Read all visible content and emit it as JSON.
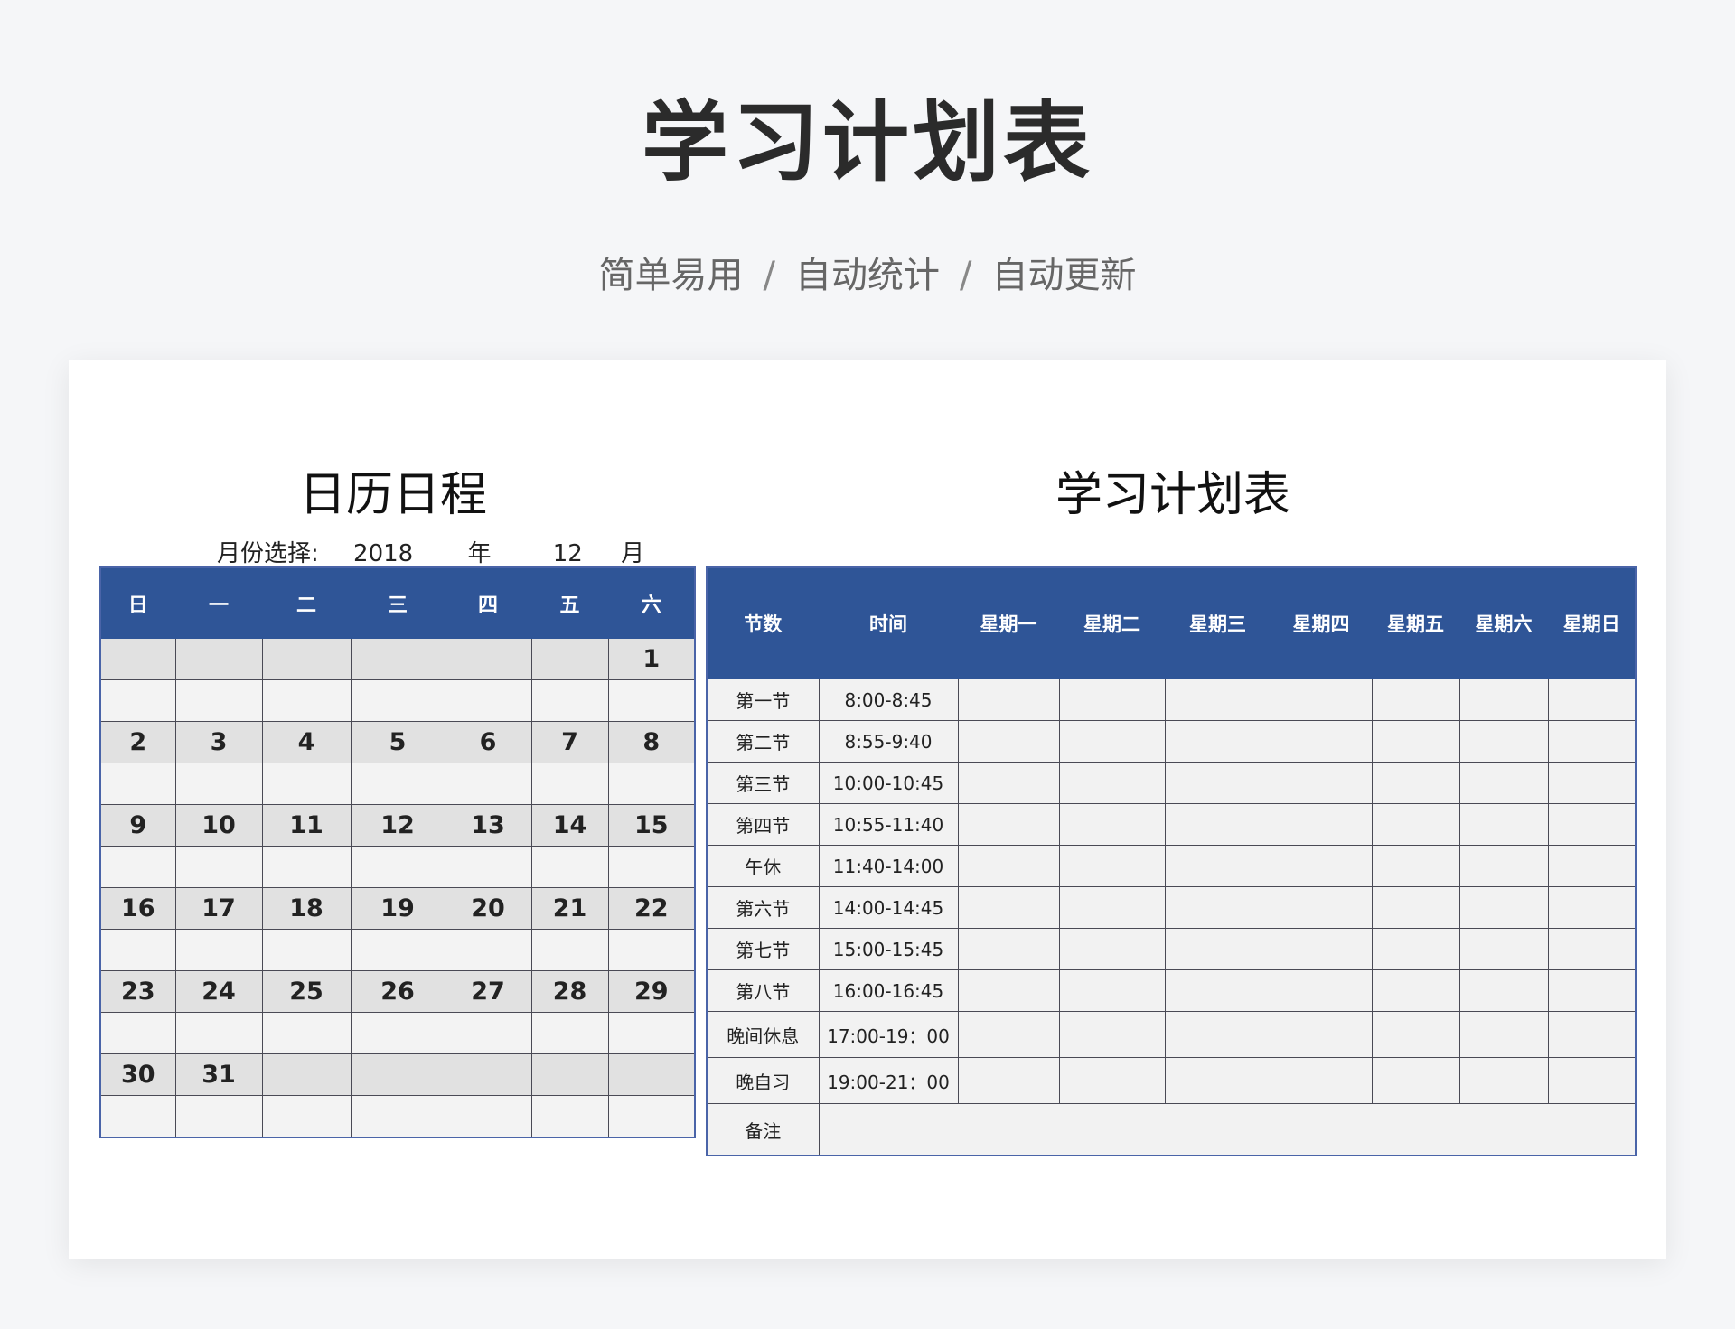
{
  "header": {
    "title": "学习计划表",
    "subtitle": [
      "简单易用",
      "自动统计",
      "自动更新"
    ],
    "separator": "/"
  },
  "calendar": {
    "title": "日历日程",
    "month_label": "月份选择:",
    "year": "2018",
    "year_unit": "年",
    "month": "12",
    "month_unit": "月",
    "weekdays": [
      "日",
      "一",
      "二",
      "三",
      "四",
      "五",
      "六"
    ],
    "weeks": [
      [
        "",
        "",
        "",
        "",
        "",
        "",
        "1"
      ],
      [
        "2",
        "3",
        "4",
        "5",
        "6",
        "7",
        "8"
      ],
      [
        "9",
        "10",
        "11",
        "12",
        "13",
        "14",
        "15"
      ],
      [
        "16",
        "17",
        "18",
        "19",
        "20",
        "21",
        "22"
      ],
      [
        "23",
        "24",
        "25",
        "26",
        "27",
        "28",
        "29"
      ],
      [
        "30",
        "31",
        "",
        "",
        "",
        "",
        ""
      ]
    ]
  },
  "plan": {
    "title": "学习计划表",
    "headers": [
      "节数",
      "时间",
      "星期一",
      "星期二",
      "星期三",
      "星期四",
      "星期五",
      "星期六",
      "星期日"
    ],
    "rows": [
      [
        "第一节",
        "8:00-8:45"
      ],
      [
        "第二节",
        "8:55-9:40"
      ],
      [
        "第三节",
        "10:00-10:45"
      ],
      [
        "第四节",
        "10:55-11:40"
      ],
      [
        "午休",
        "11:40-14:00"
      ],
      [
        "第六节",
        "14:00-14:45"
      ],
      [
        "第七节",
        "15:00-15:45"
      ],
      [
        "第八节",
        "16:00-16:45"
      ],
      [
        "晚间休息",
        "17:00-19：00"
      ],
      [
        "晚自习",
        "19:00-21：00"
      ]
    ],
    "note_label": "备注"
  },
  "colors": {
    "header_blue": "#2f5597",
    "background": "#f5f6f8"
  }
}
